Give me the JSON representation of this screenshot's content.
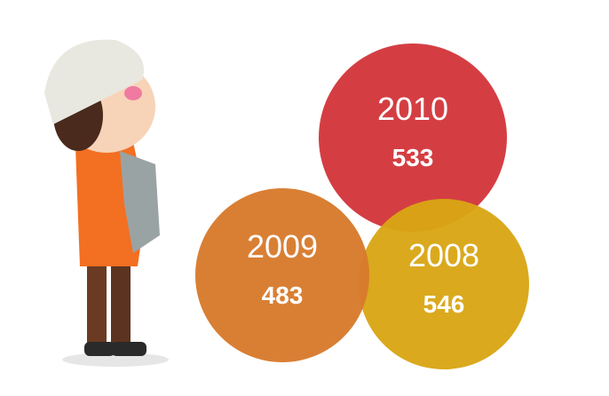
{
  "bubbles": [
    {
      "year": "2010",
      "value": 533,
      "color": "#d2363b"
    },
    {
      "year": "2008",
      "value": 546,
      "color": "#d9a515"
    },
    {
      "year": "2009",
      "value": 483,
      "color": "#d77a2c"
    }
  ]
}
